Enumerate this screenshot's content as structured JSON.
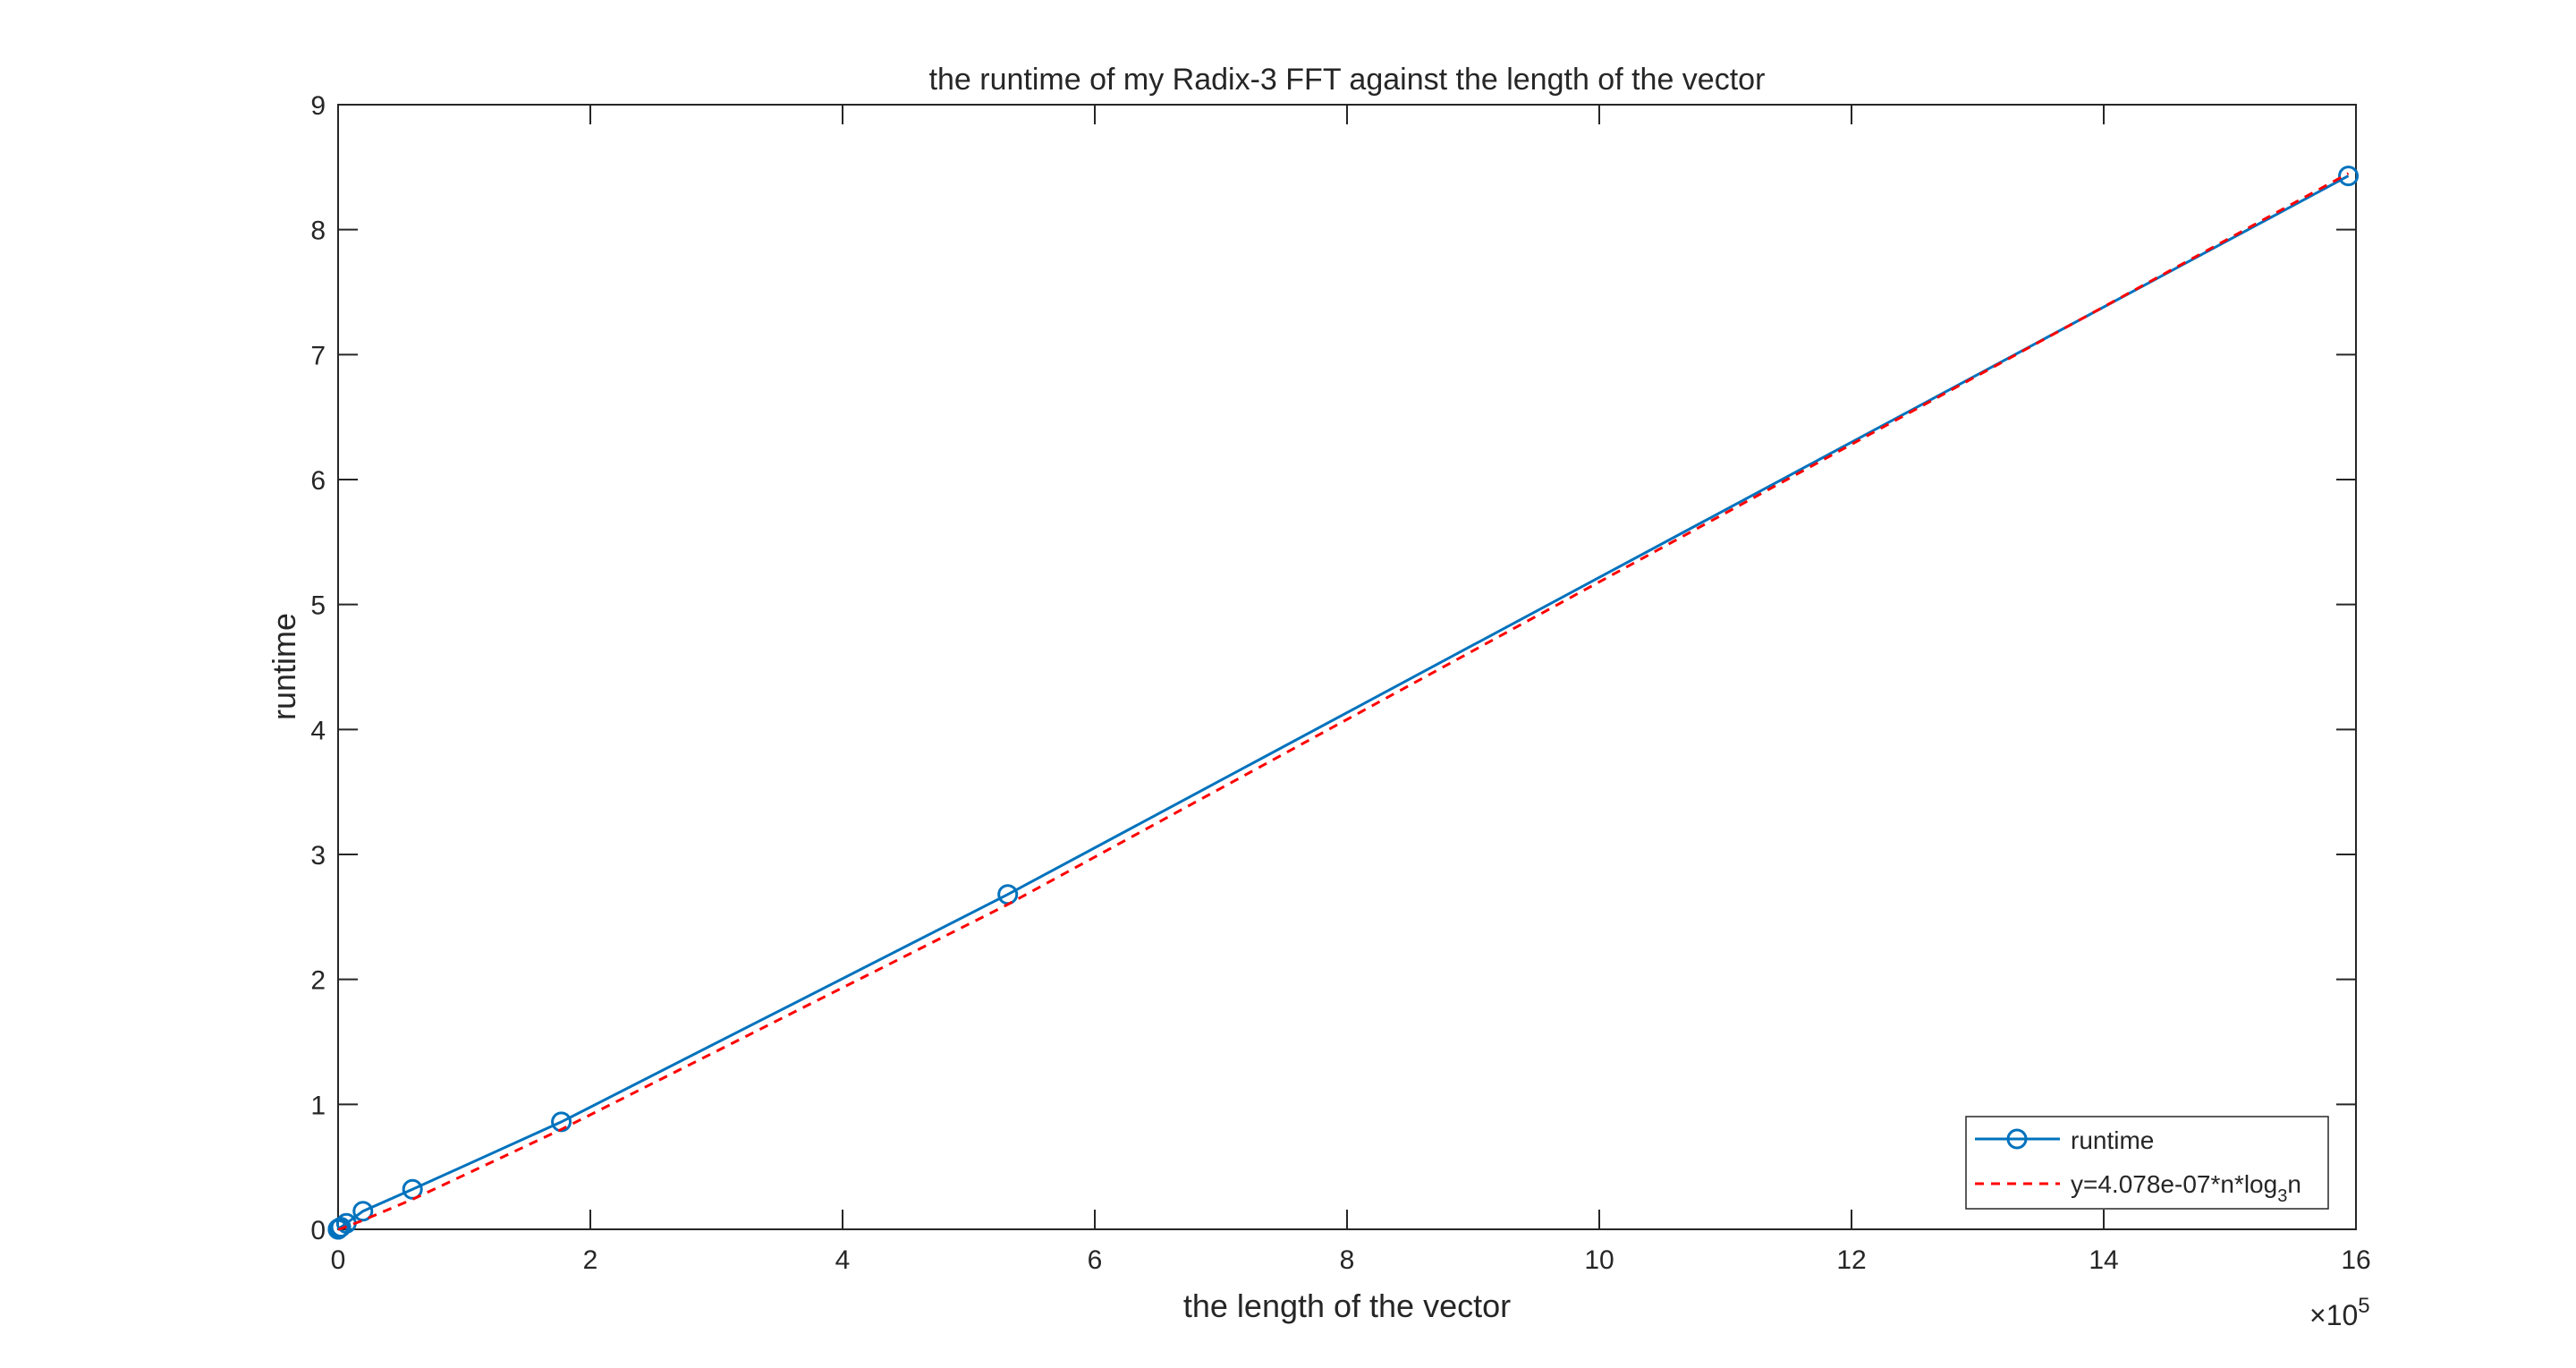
{
  "chart_data": {
    "type": "line",
    "title": "the runtime of my Radix-3 FFT against the length of the vector",
    "xlabel": "the length of the vector",
    "ylabel": "runtime",
    "xlim": [
      0,
      16
    ],
    "ylim": [
      0,
      9
    ],
    "x_exponent_label": "×10",
    "x_exponent": "5",
    "x_ticks": [
      "0",
      "2",
      "4",
      "6",
      "8",
      "10",
      "12",
      "14",
      "16"
    ],
    "y_ticks": [
      "0",
      "1",
      "2",
      "3",
      "4",
      "5",
      "6",
      "7",
      "8",
      "9"
    ],
    "grid": false,
    "legend_position": "bottom-right",
    "colors": {
      "runtime": "#0072bd",
      "fit": "#ff0000",
      "axis": "#262626"
    },
    "series": [
      {
        "name": "runtime",
        "style": "solid-circle-markers",
        "x": [
          3e-05,
          0.0001,
          0.0003,
          0.0008,
          0.0024,
          0.0073,
          0.022,
          0.066,
          0.197,
          0.59,
          1.77,
          5.31,
          15.94
        ],
        "y": [
          0.0,
          0.0,
          0.001,
          0.002,
          0.004,
          0.008,
          0.017,
          0.048,
          0.145,
          0.32,
          0.86,
          2.68,
          8.43
        ]
      },
      {
        "name": "y=4.078e-07*n*log",
        "name_subscript": "3",
        "name_suffix": "n",
        "style": "dashed",
        "x": [
          3e-05,
          0.0001,
          0.0003,
          0.0008,
          0.0024,
          0.0073,
          0.022,
          0.066,
          0.197,
          0.59,
          1.77,
          5.31,
          15.94
        ],
        "y": [
          0.0,
          0.0,
          0.0,
          0.0,
          0.0,
          0.001,
          0.006,
          0.021,
          0.072,
          0.24,
          0.8,
          2.6,
          8.45
        ]
      }
    ]
  }
}
